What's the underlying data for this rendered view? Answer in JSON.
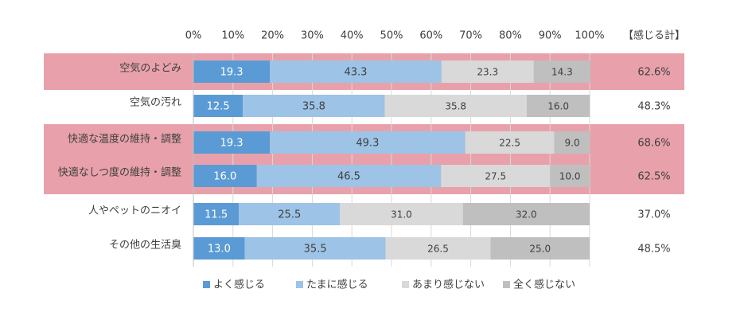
{
  "chart_data": {
    "type": "stacked-bar-horizontal",
    "categories": [
      "空気のよどみ",
      "空気の汚れ",
      "快適な温度の維持・調整",
      "快適なしつ度の維持・調整",
      "人やペットのニオイ",
      "その他の生活臭"
    ],
    "series": [
      {
        "name": "よく感じる",
        "color": "#5b9bd5",
        "values": [
          19.3,
          12.5,
          19.3,
          16.0,
          11.5,
          13.0
        ],
        "value_labels": [
          "19.3",
          "12.5",
          "19.3",
          "16.0",
          "11.5",
          "13.0"
        ]
      },
      {
        "name": "たまに感じる",
        "color": "#9dc3e6",
        "values": [
          43.3,
          35.8,
          49.3,
          46.5,
          25.5,
          35.5
        ],
        "value_labels": [
          "43.3",
          "35.8",
          "49.3",
          "46.5",
          "25.5",
          "35.5"
        ]
      },
      {
        "name": "あまり感じない",
        "color": "#d9d9d9",
        "values": [
          23.3,
          35.8,
          22.5,
          27.5,
          31.0,
          26.5
        ],
        "value_labels": [
          "23.3",
          "35.8",
          "22.5",
          "27.5",
          "31.0",
          "26.5"
        ]
      },
      {
        "name": "全く感じない",
        "color": "#bfbfbf",
        "values": [
          14.3,
          16.0,
          9.0,
          10.0,
          32.0,
          25.0
        ],
        "value_labels": [
          "14.3",
          "16.0",
          "9.0",
          "10.0",
          "32.0",
          "25.0"
        ]
      }
    ],
    "totals": {
      "label": "【感じる計】",
      "values": [
        62.6,
        48.3,
        68.6,
        62.5,
        37.0,
        48.5
      ],
      "value_labels": [
        "62.6%",
        "48.3%",
        "68.6%",
        "62.5%",
        "37.0%",
        "48.5%"
      ]
    },
    "xlim": [
      0,
      100
    ],
    "xticks": [
      {
        "value": 0,
        "label": "0%"
      },
      {
        "value": 10,
        "label": "10%"
      },
      {
        "value": 20,
        "label": "20%"
      },
      {
        "value": 30,
        "label": "30%"
      },
      {
        "value": 40,
        "label": "40%"
      },
      {
        "value": 50,
        "label": "50%"
      },
      {
        "value": 60,
        "label": "60%"
      },
      {
        "value": 70,
        "label": "70%"
      },
      {
        "value": 80,
        "label": "80%"
      },
      {
        "value": 90,
        "label": "90%"
      },
      {
        "value": 100,
        "label": "100%"
      }
    ],
    "grid": true,
    "highlighted_categories": [
      0,
      2,
      3
    ],
    "highlight_color": "#e8a1aa",
    "legend": "bottom"
  }
}
